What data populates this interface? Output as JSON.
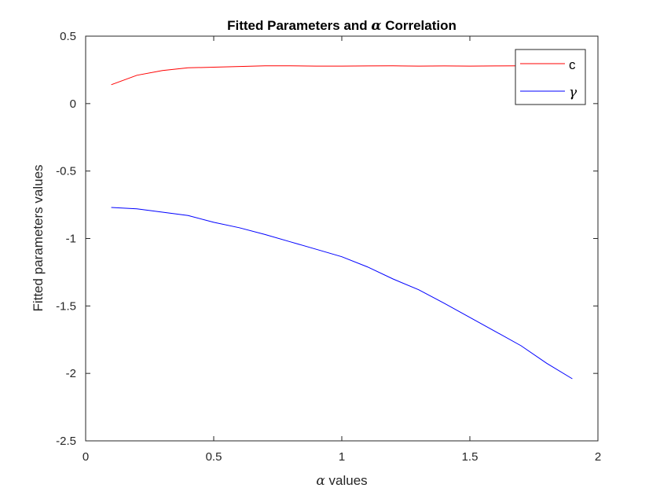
{
  "chart_data": {
    "type": "line",
    "title": {
      "before": "Fitted Parameters and ",
      "symbol": "α",
      "after": " Correlation"
    },
    "xlabel": {
      "symbol": "α",
      "after": " values"
    },
    "ylabel": "Fitted parameters values",
    "xlim": [
      0,
      2
    ],
    "ylim": [
      -2.5,
      0.5
    ],
    "xticks": [
      0,
      0.5,
      1,
      1.5,
      2
    ],
    "xtick_labels": [
      "0",
      "0.5",
      "1",
      "1.5",
      "2"
    ],
    "yticks": [
      -2.5,
      -2,
      -1.5,
      -1,
      -0.5,
      0,
      0.5
    ],
    "ytick_labels": [
      "-2.5",
      "-2",
      "-1.5",
      "-1",
      "-0.5",
      "0",
      "0.5"
    ],
    "grid": false,
    "legend_position": "top-right",
    "series": [
      {
        "name": "c",
        "color": "#ff0000",
        "x": [
          0.1,
          0.2,
          0.3,
          0.4,
          0.5,
          0.6,
          0.7,
          0.8,
          0.9,
          1.0,
          1.1,
          1.2,
          1.3,
          1.4,
          1.5,
          1.6,
          1.7,
          1.8,
          1.9
        ],
        "y": [
          0.14,
          0.21,
          0.245,
          0.265,
          0.27,
          0.275,
          0.28,
          0.28,
          0.278,
          0.278,
          0.279,
          0.28,
          0.278,
          0.279,
          0.278,
          0.279,
          0.28,
          0.279,
          0.28
        ]
      },
      {
        "name": "γ",
        "color": "#0000ff",
        "x": [
          0.1,
          0.2,
          0.3,
          0.4,
          0.5,
          0.6,
          0.7,
          0.8,
          0.9,
          1.0,
          1.1,
          1.2,
          1.3,
          1.4,
          1.5,
          1.6,
          1.7,
          1.8,
          1.9
        ],
        "y": [
          -0.77,
          -0.78,
          -0.805,
          -0.83,
          -0.88,
          -0.92,
          -0.97,
          -1.025,
          -1.08,
          -1.135,
          -1.21,
          -1.3,
          -1.38,
          -1.48,
          -1.585,
          -1.69,
          -1.795,
          -1.925,
          -2.04
        ]
      }
    ]
  }
}
